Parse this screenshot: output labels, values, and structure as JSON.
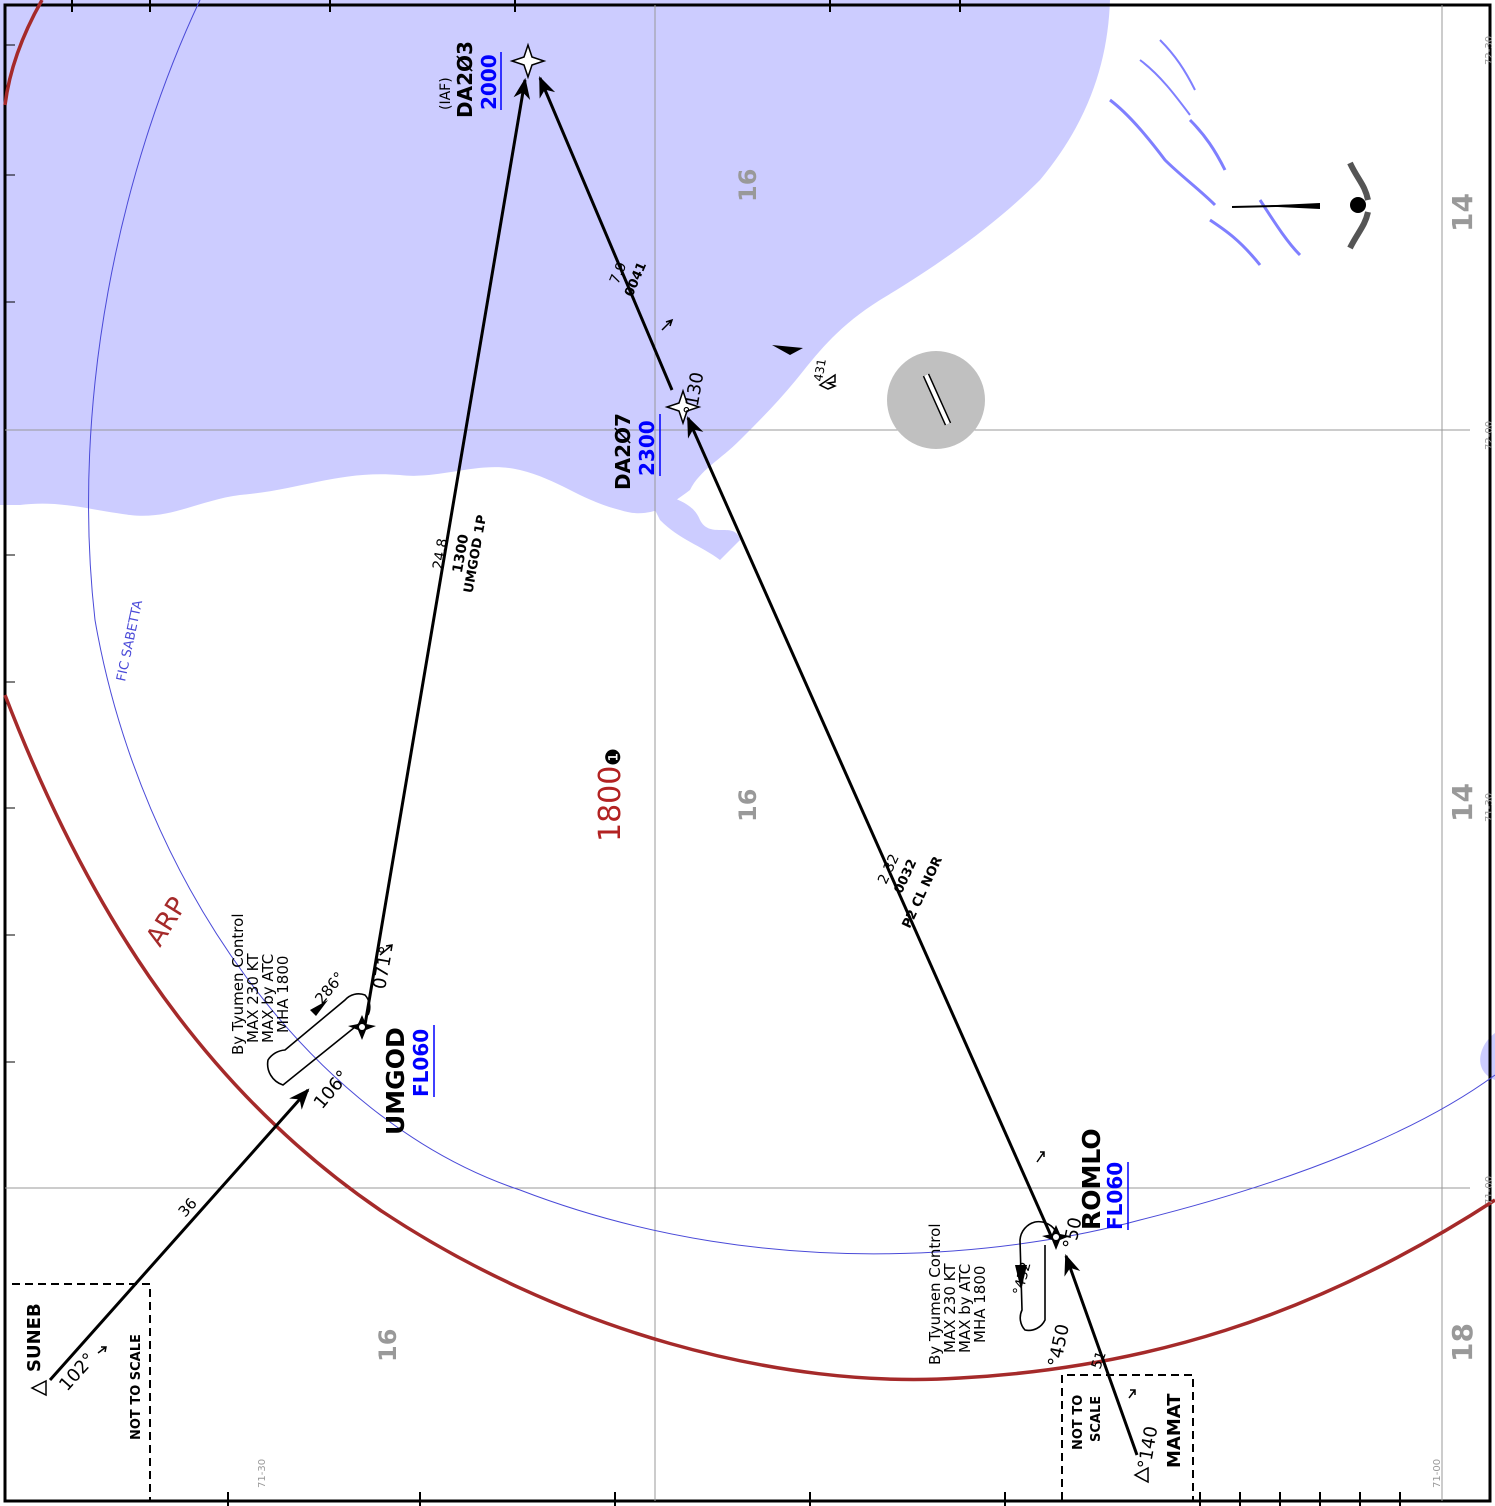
{
  "map": {
    "colors": {
      "water": "#ccccff",
      "water_line": "#7f7fff",
      "arp_ring": "#a52a2a",
      "fic_line": "#4a4ad8",
      "altitude_blue": "#0000ff",
      "msa_red": "#b22222",
      "grid_grey": "#999999",
      "airport_grey": "#c0c0c0"
    },
    "labels": {
      "arp": "ARP",
      "fic": "FIC SABETTA",
      "msa_altitude": "1800",
      "msa_note": "❶",
      "not_to_scale_left": "NOT TO SCALE",
      "not_to_scale_right_1": "NOT TO",
      "not_to_scale_right_2": "SCALE",
      "obstacle_elev": "431"
    },
    "grid_numbers": {
      "g16_a": "16",
      "g16_b": "16",
      "g16_c": "16",
      "g14_a": "14",
      "g14_b": "14",
      "g18": "18"
    },
    "grid_coords": {
      "lat_72_30": "72-30",
      "lat_72_00": "72-00",
      "lat_71_30_right": "71-30",
      "lat_71_00_right": "71-00",
      "lat_71_00_bottom": "71-00",
      "lat_71_30_bottom": "71-30"
    },
    "waypoints": {
      "da203": {
        "iaf": "(IAF)",
        "name": "DA2Ø3",
        "alt": "2000"
      },
      "da207": {
        "name": "DA2Ø7",
        "alt": "2300"
      },
      "umgod": {
        "name": "UMGOD",
        "fl": "FL060"
      },
      "romlo": {
        "name": "ROMLO",
        "fl": "FL060"
      },
      "suneb": {
        "name": "SUNEB"
      },
      "mamat": {
        "name": "MAMAT"
      }
    },
    "holdings": {
      "umgod": {
        "ctrl": "By Tyumen Control",
        "speed": "MAX 230 KT",
        "alt": "MAX by ATC",
        "mha": "MHA 1800",
        "inbound": "106°",
        "outbound": "286°"
      },
      "romlo": {
        "ctrl": "By Tyumen Control",
        "speed": "MAX 230 KT",
        "alt": "MAX by ATC",
        "mha": "MHA 1800",
        "inbound": "°450",
        "outbound": "°432"
      }
    },
    "legs": {
      "umgod_da203": {
        "dist": "24.8",
        "alt": "1300",
        "name": "UMGOD 1P"
      },
      "da203_da207": {
        "dist": "7.9",
        "alt": "0041"
      },
      "romlo_da207": {
        "dist": "2.32",
        "alt": "0032",
        "name": "P2 CL NOR"
      },
      "suneb_umgod": {
        "dist": "36",
        "course": "102°"
      },
      "umgod_out": {
        "course": "071°"
      },
      "mamat_romlo": {
        "dist": "51",
        "course": "°140"
      },
      "romlo_out": {
        "course": "°50"
      },
      "da207_course": {
        "course": "°130"
      }
    }
  }
}
